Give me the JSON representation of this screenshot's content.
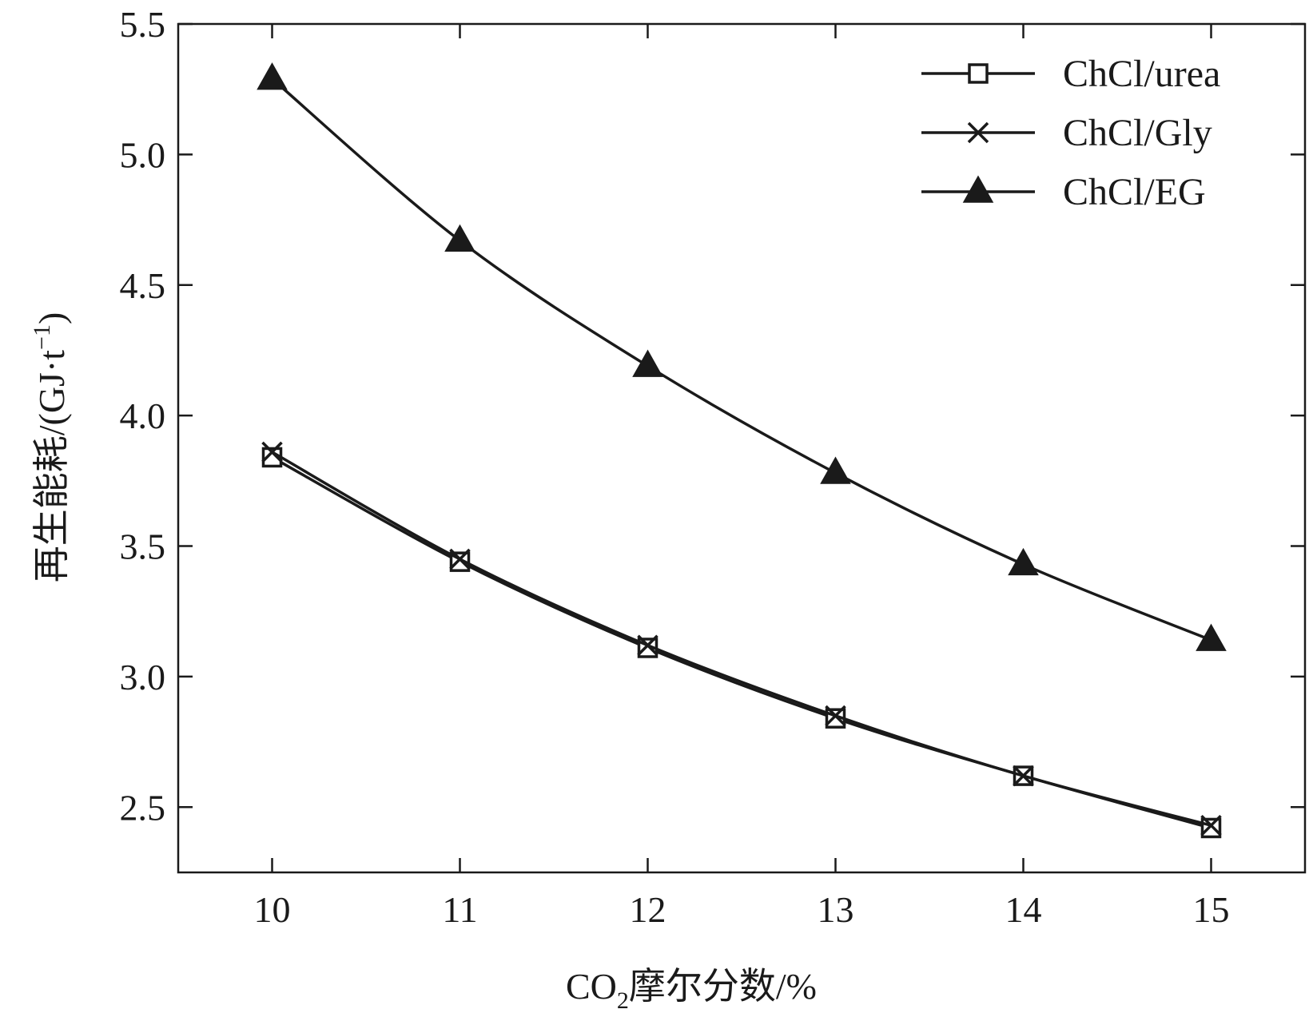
{
  "chart_data": {
    "type": "line",
    "title": "",
    "xlabel_main": "CO",
    "xlabel_sub": "2",
    "xlabel_rest": "摩尔分数/%",
    "ylabel_main": "再生能耗/(GJ·t",
    "ylabel_sup": "−1",
    "ylabel_end": ")",
    "x": [
      10,
      11,
      12,
      13,
      14,
      15
    ],
    "xlim": [
      9.5,
      15.5
    ],
    "ylim": [
      2.25,
      5.5
    ],
    "xticks": [
      "10",
      "11",
      "12",
      "13",
      "14",
      "15"
    ],
    "yticks": [
      "2.5",
      "3.0",
      "3.5",
      "4.0",
      "4.5",
      "5.0",
      "5.5"
    ],
    "legend_position": "top-right",
    "series": [
      {
        "name": "ChCl/urea",
        "marker": "square",
        "values": [
          3.84,
          3.44,
          3.11,
          2.84,
          2.62,
          2.42
        ]
      },
      {
        "name": "ChCl/Gly",
        "marker": "x",
        "values": [
          3.86,
          3.45,
          3.12,
          2.85,
          2.62,
          2.43
        ]
      },
      {
        "name": "ChCl/EG",
        "marker": "triangle",
        "values": [
          5.29,
          4.67,
          4.19,
          3.78,
          3.43,
          3.14
        ]
      }
    ],
    "colors": {
      "line": "#1a1a1a",
      "background": "#ffffff"
    }
  }
}
